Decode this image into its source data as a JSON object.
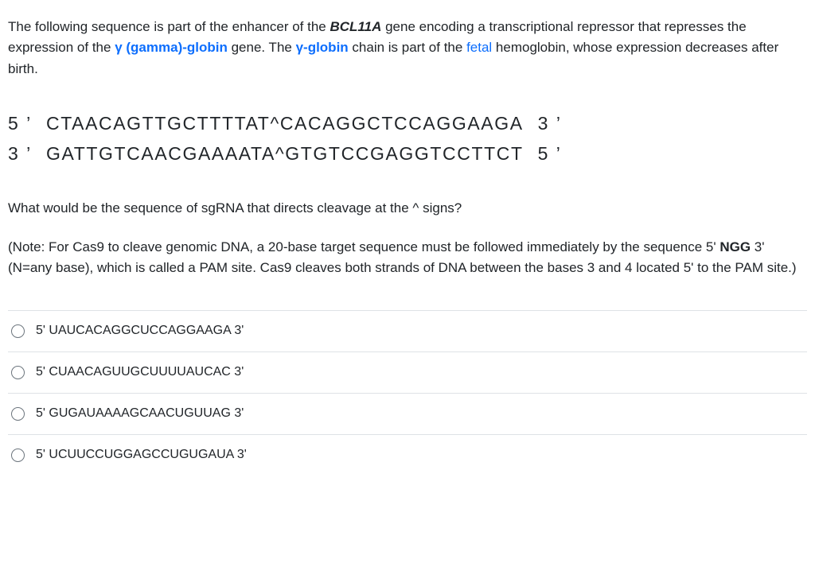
{
  "intro": {
    "s1a": "The following sequence is part of the enhancer of the ",
    "gene_name": "BCL11A",
    "s1b": " gene encoding a transcriptional repressor that represses the expression of the ",
    "gamma1": "γ (gamma)-globin",
    "s1c": " gene. The ",
    "gamma2": "γ-globin",
    "s1d": " chain is part of the ",
    "fetal": "fetal",
    "s1e": " hemoglobin, whose expression decreases after birth."
  },
  "sequence": {
    "row1": {
      "left": "5 ’",
      "seq": "CTAACAGTTGCTTTTAT^CACAGGCTCCAGGAAGA",
      "right": "3 ’"
    },
    "row2": {
      "left": "3 ’",
      "seq": "GATTGTCAACGAAAATA^GTGTCCGAGGTCCTTCT",
      "right": "5 ’"
    }
  },
  "question_text": "What would be the sequence of sgRNA that directs cleavage at the ^ signs?",
  "note": {
    "a": "(Note: For Cas9 to cleave genomic DNA, a 20-base target sequence must be followed immediately by the sequence 5' ",
    "pam": "NGG",
    "b": " 3' (N=any base), which is called a PAM site. Cas9 cleaves both strands of DNA between the bases 3 and 4 located 5' to the PAM site.)"
  },
  "options": [
    {
      "label": "5' UAUCACAGGCUCCAGGAAGA 3'"
    },
    {
      "label": "5' CUAACAGUUGCUUUUAUCAC 3'"
    },
    {
      "label": "5' GUGAUAAAAGCAACUGUUAG 3'"
    },
    {
      "label": "5' UCUUCCUGGAGCCUGUGAUA 3'"
    }
  ],
  "colors": {
    "link": "#0d6efd",
    "text": "#212529",
    "border": "#dee2e6",
    "radio_border": "#6c757d",
    "background": "#ffffff"
  }
}
